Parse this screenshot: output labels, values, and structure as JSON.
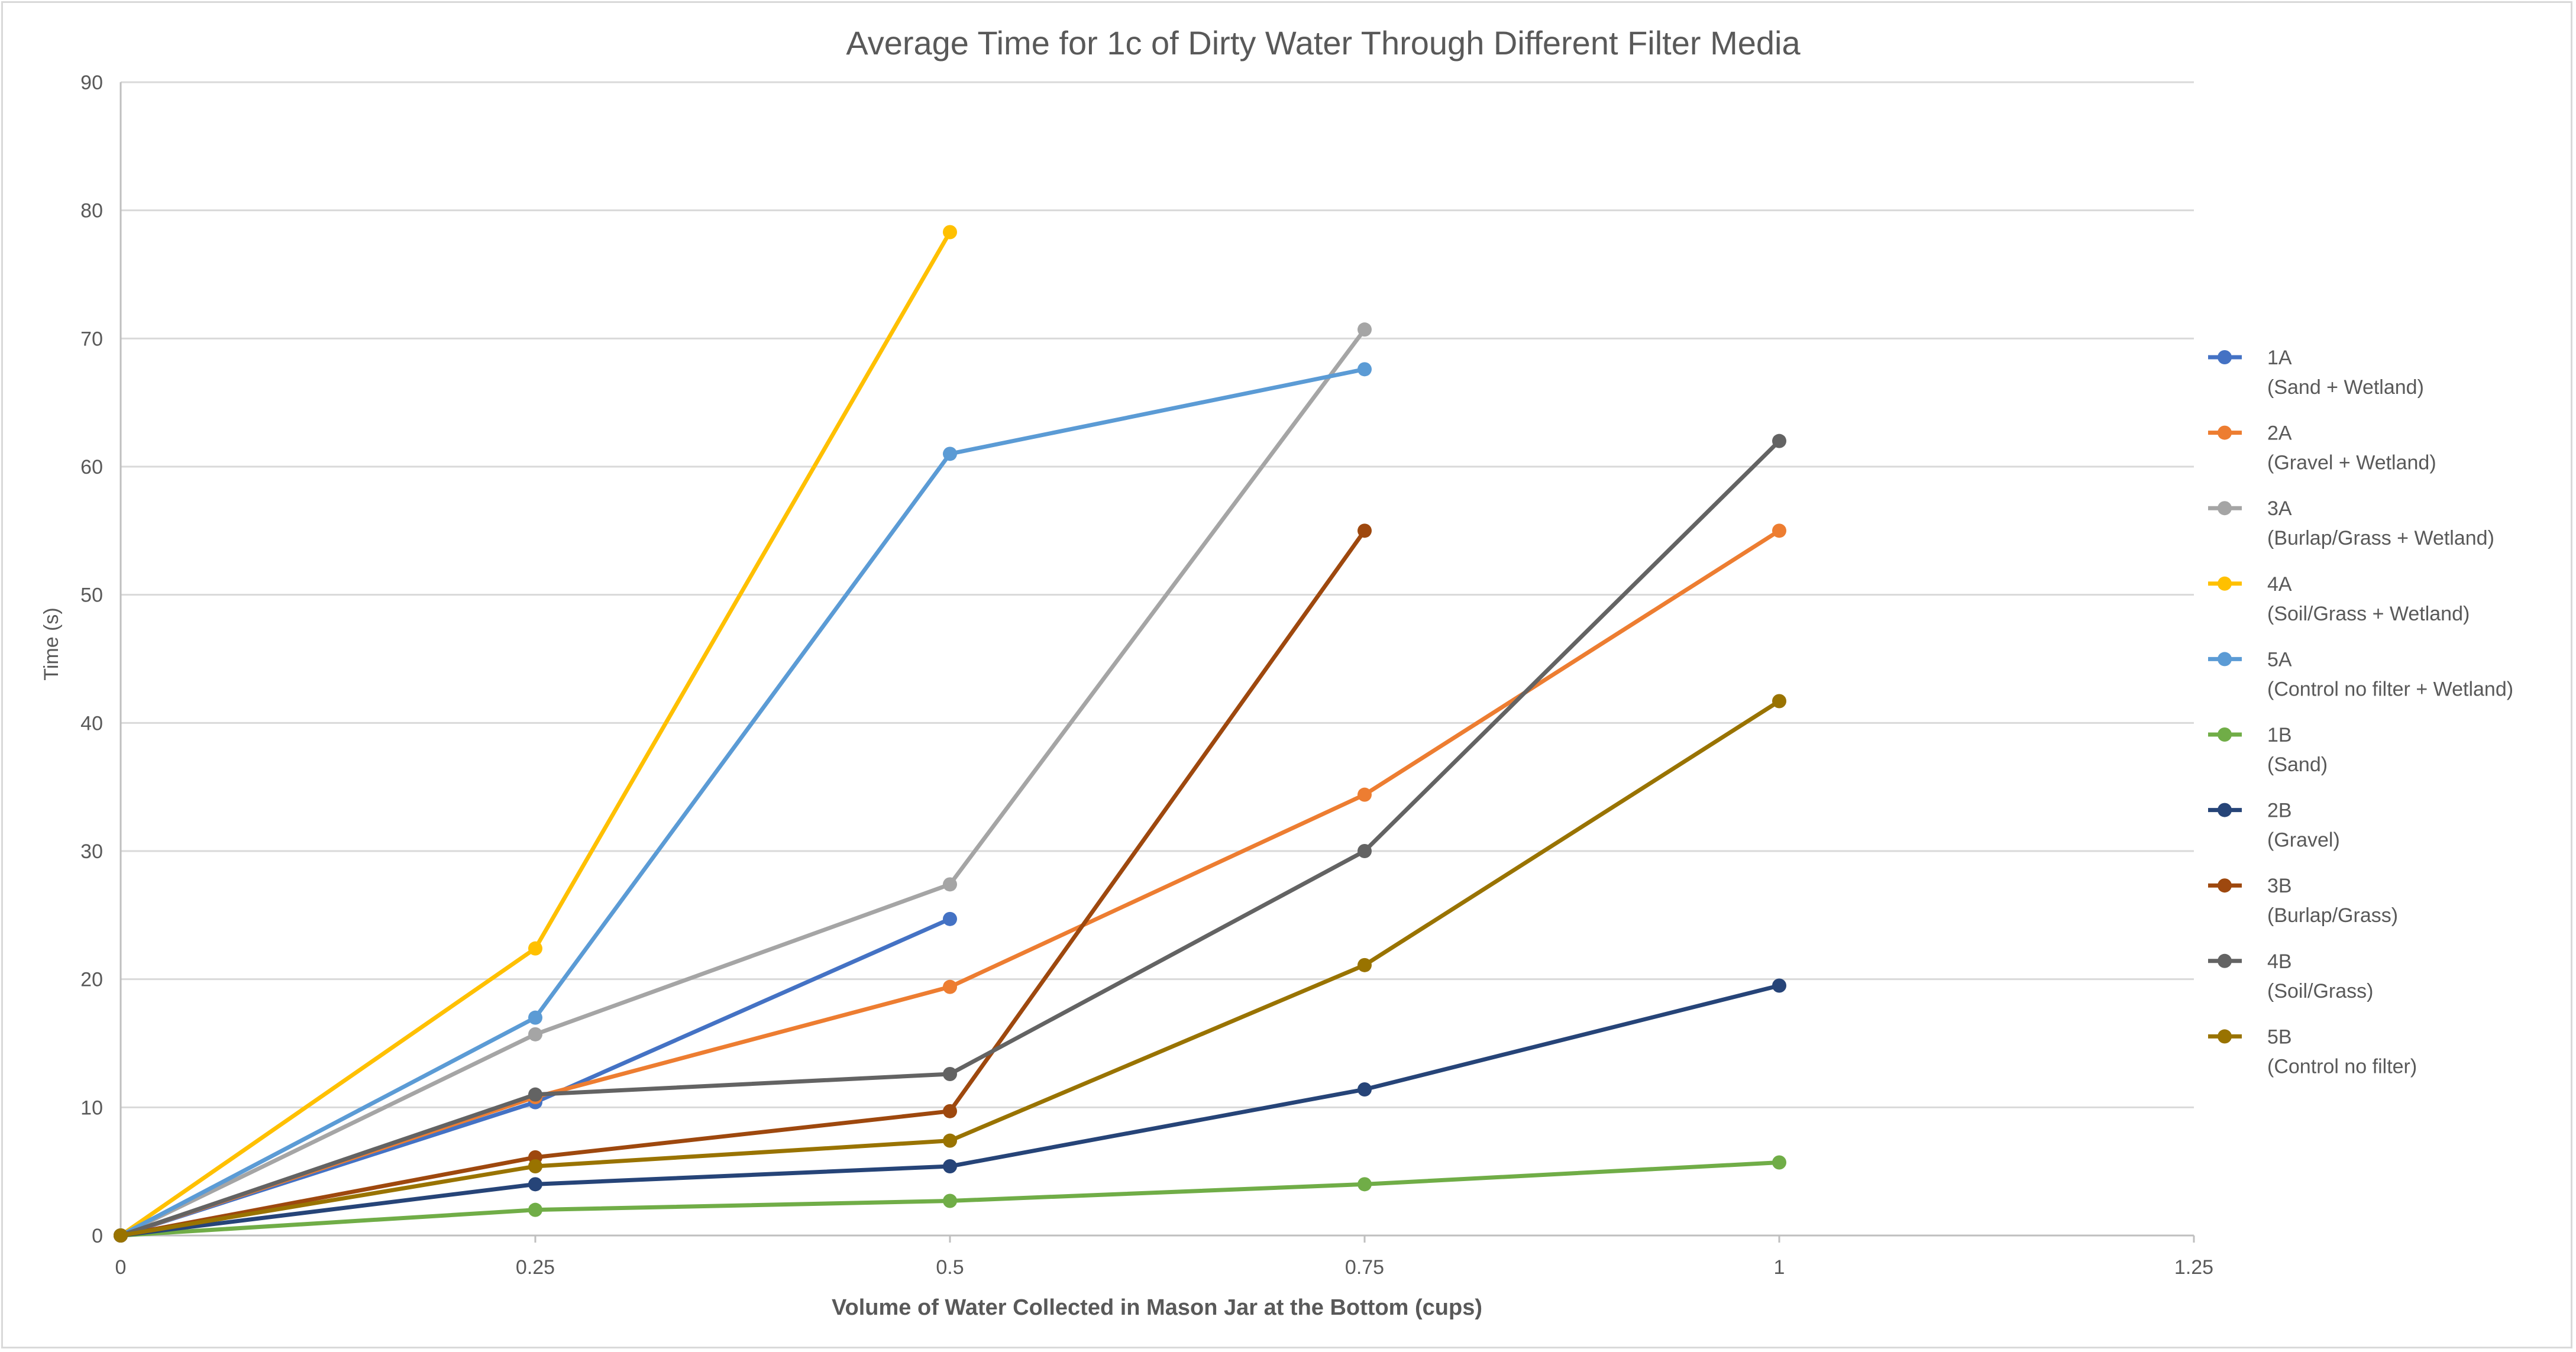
{
  "chart_data": {
    "type": "line",
    "title": "Average Time for 1c of Dirty Water Through Different Filter Media",
    "xlabel": "Volume of Water Collected in Mason Jar at the Bottom (cups)",
    "ylabel": "Time (s)",
    "xlim": [
      0,
      1.25
    ],
    "ylim": [
      0,
      90
    ],
    "x_ticks": [
      "0",
      "0.25",
      "0.5",
      "0.75",
      "1",
      "1.25"
    ],
    "x_tick_values": [
      0,
      0.25,
      0.5,
      0.75,
      1,
      1.25
    ],
    "y_ticks": [
      "0",
      "10",
      "20",
      "30",
      "40",
      "50",
      "60",
      "70",
      "80",
      "90"
    ],
    "y_tick_values": [
      0,
      10,
      20,
      30,
      40,
      50,
      60,
      70,
      80,
      90
    ],
    "grid": "horizontal",
    "legend_position": "right",
    "series": [
      {
        "name": "1A",
        "subtitle": "(Sand + Wetland)",
        "color": "#4472c4",
        "points": [
          [
            0,
            0
          ],
          [
            0.25,
            10.4
          ],
          [
            0.5,
            24.7
          ]
        ]
      },
      {
        "name": "2A",
        "subtitle": "(Gravel + Wetland)",
        "color": "#ed7d31",
        "points": [
          [
            0,
            0
          ],
          [
            0.25,
            10.8
          ],
          [
            0.5,
            19.4
          ],
          [
            0.75,
            34.4
          ],
          [
            1,
            55
          ]
        ]
      },
      {
        "name": "3A",
        "subtitle": "(Burlap/Grass + Wetland)",
        "color": "#a5a5a5",
        "points": [
          [
            0,
            0
          ],
          [
            0.25,
            15.7
          ],
          [
            0.5,
            27.4
          ],
          [
            0.75,
            70.7
          ]
        ]
      },
      {
        "name": "4A",
        "subtitle": "(Soil/Grass + Wetland)",
        "color": "#ffc000",
        "points": [
          [
            0,
            0
          ],
          [
            0.25,
            22.4
          ],
          [
            0.5,
            78.3
          ]
        ]
      },
      {
        "name": "5A",
        "subtitle": "(Control no filter + Wetland)",
        "color": "#5b9bd5",
        "points": [
          [
            0,
            0
          ],
          [
            0.25,
            17
          ],
          [
            0.5,
            61
          ],
          [
            0.75,
            67.6
          ]
        ]
      },
      {
        "name": "1B",
        "subtitle": "(Sand)",
        "color": "#70ad47",
        "points": [
          [
            0,
            0
          ],
          [
            0.25,
            2
          ],
          [
            0.5,
            2.7
          ],
          [
            0.75,
            4
          ],
          [
            1,
            5.7
          ]
        ]
      },
      {
        "name": "2B",
        "subtitle": "(Gravel)",
        "color": "#264478",
        "points": [
          [
            0,
            0
          ],
          [
            0.25,
            4
          ],
          [
            0.5,
            5.4
          ],
          [
            0.75,
            11.4
          ],
          [
            1,
            19.5
          ]
        ]
      },
      {
        "name": "3B",
        "subtitle": "(Burlap/Grass)",
        "color": "#9e480e",
        "points": [
          [
            0,
            0
          ],
          [
            0.25,
            6.1
          ],
          [
            0.5,
            9.7
          ],
          [
            0.75,
            55
          ]
        ]
      },
      {
        "name": "4B",
        "subtitle": "(Soil/Grass)",
        "color": "#636363",
        "points": [
          [
            0,
            0
          ],
          [
            0.25,
            11
          ],
          [
            0.5,
            12.6
          ],
          [
            0.75,
            30
          ],
          [
            1,
            62
          ]
        ]
      },
      {
        "name": "5B",
        "subtitle": "(Control no filter)",
        "color": "#997300",
        "points": [
          [
            0,
            0
          ],
          [
            0.25,
            5.4
          ],
          [
            0.5,
            7.4
          ],
          [
            0.75,
            21.1
          ],
          [
            1,
            41.7
          ]
        ]
      }
    ]
  }
}
